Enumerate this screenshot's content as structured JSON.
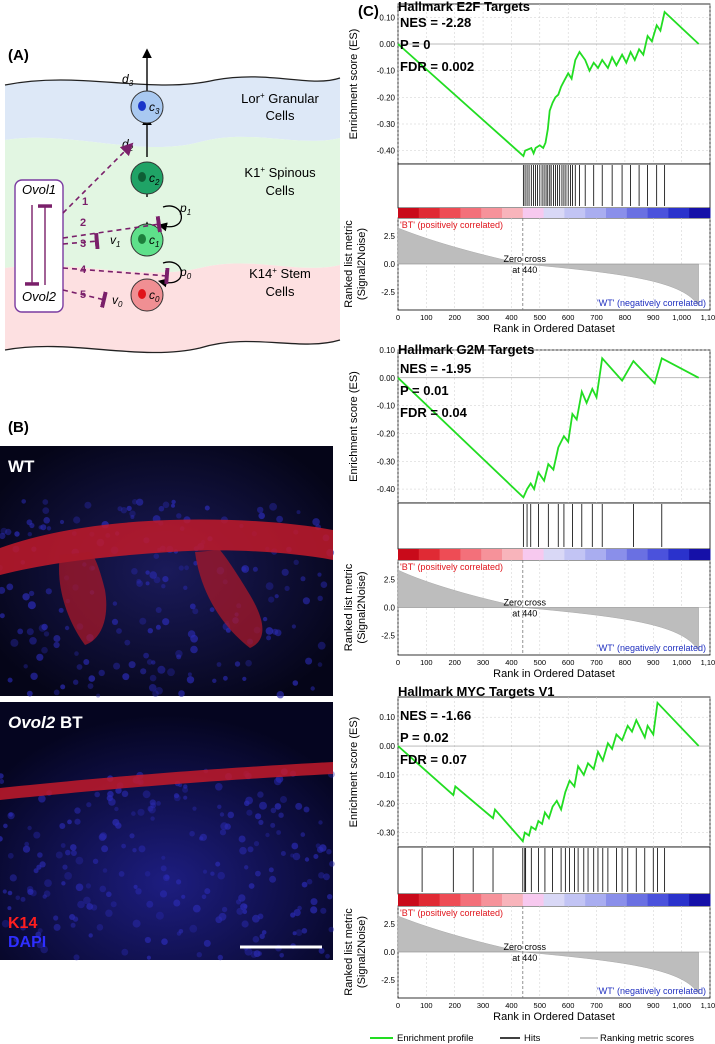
{
  "panel_a": {
    "label": "(A)",
    "layers": [
      {
        "name": "Lor",
        "sup": "+",
        "line2": "Granular",
        "line3": "Cells",
        "color": "#dde8f7"
      },
      {
        "name": "K1",
        "sup": "+",
        "line2": "Spinous",
        "line3": "Cells",
        "color": "#e2f6e2"
      },
      {
        "name": "K14",
        "sup": "+",
        "line2": "Stem",
        "line3": "Cells",
        "color": "#fde0e1"
      }
    ],
    "cells": [
      {
        "main": "c",
        "sub": "3",
        "fill": "#a9c9f1",
        "nucleus": "#1b36c9"
      },
      {
        "main": "c",
        "sub": "2",
        "fill": "#1fa366",
        "nucleus": "#0e5e35"
      },
      {
        "main": "c",
        "sub": "1",
        "fill": "#5ee08a",
        "nucleus": "#1d7f3c"
      },
      {
        "main": "c",
        "sub": "0",
        "fill": "#f08f93",
        "nucleus": "#e0141b"
      }
    ],
    "rates": {
      "d3": {
        "main": "d",
        "sub": "3"
      },
      "d2": {
        "main": "d",
        "sub": "2"
      },
      "p1": {
        "main": "p",
        "sub": "1"
      },
      "v1": {
        "main": "v",
        "sub": "1"
      },
      "p0": {
        "main": "p",
        "sub": "0"
      },
      "v0": {
        "main": "v",
        "sub": "0"
      }
    },
    "genes": [
      "Ovol1",
      "Ovol2"
    ],
    "regulation_numbers": [
      "1",
      "2",
      "3",
      "4",
      "5"
    ]
  },
  "panel_b": {
    "label": "(B)",
    "top_label": "WT",
    "bottom_label_italic": "Ovol2",
    "bottom_label_rest": " BT",
    "stain1": "K14",
    "stain2": "DAPI",
    "stain1_color": "#ff1e1e",
    "stain2_color": "#2e2eff"
  },
  "panel_c": {
    "label": "(C)",
    "es_ylabel": "Enrichment score (ES)",
    "rank_ylabel_1": "Ranked list metric",
    "rank_ylabel_2": "(Signal2Noise)",
    "xlabel": "Rank in Ordered Dataset",
    "zero_cross_1": "Zero cross",
    "zero_cross_2": "at 440",
    "pos_label": "'BT' (positively correlated)",
    "neg_label": "'WT' (negatively correlated)",
    "legend": [
      "Enrichment profile",
      "Hits",
      "Ranking metric scores"
    ],
    "legend_colors": [
      "#22dd22",
      "#000000",
      "#b0b0b0"
    ]
  },
  "chart_data": [
    {
      "type": "line",
      "title": "Hallmark E2F Targets",
      "stats": [
        "NES = -2.28",
        "P = 0",
        "FDR = 0.002"
      ],
      "xlabel": "Rank in Ordered Dataset",
      "ylabel": "Enrichment score (ES)",
      "xlim": [
        0,
        1100
      ],
      "ylim": [
        -0.45,
        0.15
      ],
      "x_ticks": [
        "0",
        "100",
        "200",
        "300",
        "400",
        "500",
        "600",
        "700",
        "800",
        "900",
        "1,000",
        "1,100"
      ],
      "y_ticks": [
        "0.10",
        "0.00",
        "-0.10",
        "-0.20",
        "-0.30",
        "-0.40"
      ],
      "rank_y_ticks": [
        "2.5",
        "0.0",
        "-2.5"
      ],
      "es": [
        [
          0,
          0
        ],
        [
          442,
          -0.42
        ],
        [
          448,
          -0.4
        ],
        [
          470,
          -0.39
        ],
        [
          478,
          -0.41
        ],
        [
          485,
          -0.39
        ],
        [
          500,
          -0.38
        ],
        [
          512,
          -0.39
        ],
        [
          520,
          -0.37
        ],
        [
          528,
          -0.32
        ],
        [
          535,
          -0.25
        ],
        [
          545,
          -0.22
        ],
        [
          555,
          -0.2
        ],
        [
          565,
          -0.19
        ],
        [
          575,
          -0.16
        ],
        [
          585,
          -0.14
        ],
        [
          600,
          -0.11
        ],
        [
          612,
          -0.13
        ],
        [
          625,
          -0.06
        ],
        [
          640,
          -0.03
        ],
        [
          660,
          -0.06
        ],
        [
          675,
          -0.1
        ],
        [
          690,
          -0.07
        ],
        [
          705,
          -0.09
        ],
        [
          720,
          -0.06
        ],
        [
          740,
          -0.09
        ],
        [
          755,
          -0.05
        ],
        [
          770,
          -0.08
        ],
        [
          790,
          -0.04
        ],
        [
          805,
          -0.07
        ],
        [
          820,
          -0.03
        ],
        [
          835,
          -0.06
        ],
        [
          850,
          -0.02
        ],
        [
          865,
          -0.04
        ],
        [
          880,
          0.03
        ],
        [
          895,
          0.01
        ],
        [
          912,
          0.07
        ],
        [
          925,
          0.05
        ],
        [
          940,
          0.12
        ],
        [
          1060,
          0
        ]
      ],
      "hits": [
        442,
        448,
        455,
        462,
        470,
        478,
        485,
        492,
        500,
        508,
        515,
        522,
        528,
        535,
        540,
        548,
        555,
        562,
        570,
        578,
        585,
        592,
        600,
        608,
        615,
        625,
        640,
        660,
        690,
        720,
        755,
        790,
        820,
        850,
        880,
        912,
        940
      ]
    },
    {
      "type": "line",
      "title": "Hallmark G2M Targets",
      "stats": [
        "NES = -1.95",
        "P = 0.01",
        "FDR = 0.04"
      ],
      "xlabel": "Rank in Ordered Dataset",
      "ylabel": "Enrichment score (ES)",
      "xlim": [
        0,
        1100
      ],
      "ylim": [
        -0.45,
        0.1
      ],
      "x_ticks": [
        "0",
        "100",
        "200",
        "300",
        "400",
        "500",
        "600",
        "700",
        "800",
        "900",
        "1,000",
        "1,100"
      ],
      "y_ticks": [
        "0.10",
        "0.00",
        "-0.10",
        "-0.20",
        "-0.30",
        "-0.40"
      ],
      "rank_y_ticks": [
        "2.5",
        "0.0",
        "-2.5"
      ],
      "es": [
        [
          0,
          0
        ],
        [
          442,
          -0.43
        ],
        [
          455,
          -0.4
        ],
        [
          468,
          -0.38
        ],
        [
          480,
          -0.4
        ],
        [
          495,
          -0.34
        ],
        [
          515,
          -0.37
        ],
        [
          530,
          -0.31
        ],
        [
          548,
          -0.33
        ],
        [
          565,
          -0.25
        ],
        [
          585,
          -0.21
        ],
        [
          600,
          -0.23
        ],
        [
          615,
          -0.13
        ],
        [
          630,
          -0.15
        ],
        [
          648,
          -0.05
        ],
        [
          665,
          -0.09
        ],
        [
          685,
          -0.04
        ],
        [
          700,
          -0.07
        ],
        [
          720,
          0.07
        ],
        [
          790,
          -0.01
        ],
        [
          830,
          0.06
        ],
        [
          905,
          -0.02
        ],
        [
          930,
          0.07
        ],
        [
          1060,
          0
        ]
      ],
      "hits": [
        442,
        455,
        468,
        495,
        530,
        565,
        585,
        615,
        648,
        685,
        720,
        830,
        930
      ]
    },
    {
      "type": "line",
      "title": "Hallmark MYC Targets V1",
      "stats": [
        "NES = -1.66",
        "P = 0.02",
        "FDR = 0.07"
      ],
      "xlabel": "Rank in Ordered Dataset",
      "ylabel": "Enrichment score (ES)",
      "xlim": [
        0,
        1100
      ],
      "ylim": [
        -0.35,
        0.17
      ],
      "x_ticks": [
        "0",
        "100",
        "200",
        "300",
        "400",
        "500",
        "600",
        "700",
        "800",
        "900",
        "1,000",
        "1,100"
      ],
      "y_ticks": [
        "0.10",
        "0.00",
        "-0.10",
        "-0.20",
        "-0.30"
      ],
      "rank_y_ticks": [
        "2.5",
        "0.0",
        "-2.5"
      ],
      "es": [
        [
          0,
          0
        ],
        [
          195,
          -0.17
        ],
        [
          202,
          -0.14
        ],
        [
          335,
          -0.25
        ],
        [
          342,
          -0.22
        ],
        [
          440,
          -0.33
        ],
        [
          447,
          -0.3
        ],
        [
          462,
          -0.31
        ],
        [
          470,
          -0.28
        ],
        [
          485,
          -0.29
        ],
        [
          495,
          -0.26
        ],
        [
          508,
          -0.27
        ],
        [
          518,
          -0.23
        ],
        [
          532,
          -0.25
        ],
        [
          545,
          -0.21
        ],
        [
          560,
          -0.19
        ],
        [
          575,
          -0.22
        ],
        [
          590,
          -0.16
        ],
        [
          605,
          -0.12
        ],
        [
          622,
          -0.14
        ],
        [
          635,
          -0.07
        ],
        [
          655,
          -0.1
        ],
        [
          670,
          -0.06
        ],
        [
          690,
          -0.08
        ],
        [
          705,
          -0.02
        ],
        [
          722,
          -0.05
        ],
        [
          740,
          0.01
        ],
        [
          755,
          -0.01
        ],
        [
          770,
          0.04
        ],
        [
          790,
          0.02
        ],
        [
          810,
          0.07
        ],
        [
          825,
          0.05
        ],
        [
          840,
          0.09
        ],
        [
          855,
          0.06
        ],
        [
          870,
          0.03
        ],
        [
          880,
          0.07
        ],
        [
          900,
          0.04
        ],
        [
          915,
          0.15
        ],
        [
          1060,
          0
        ]
      ],
      "hits": [
        85,
        195,
        265,
        335,
        440,
        447,
        450,
        470,
        495,
        518,
        545,
        575,
        590,
        605,
        622,
        635,
        655,
        670,
        690,
        705,
        722,
        740,
        770,
        790,
        810,
        840,
        870,
        900,
        915,
        940
      ]
    }
  ]
}
